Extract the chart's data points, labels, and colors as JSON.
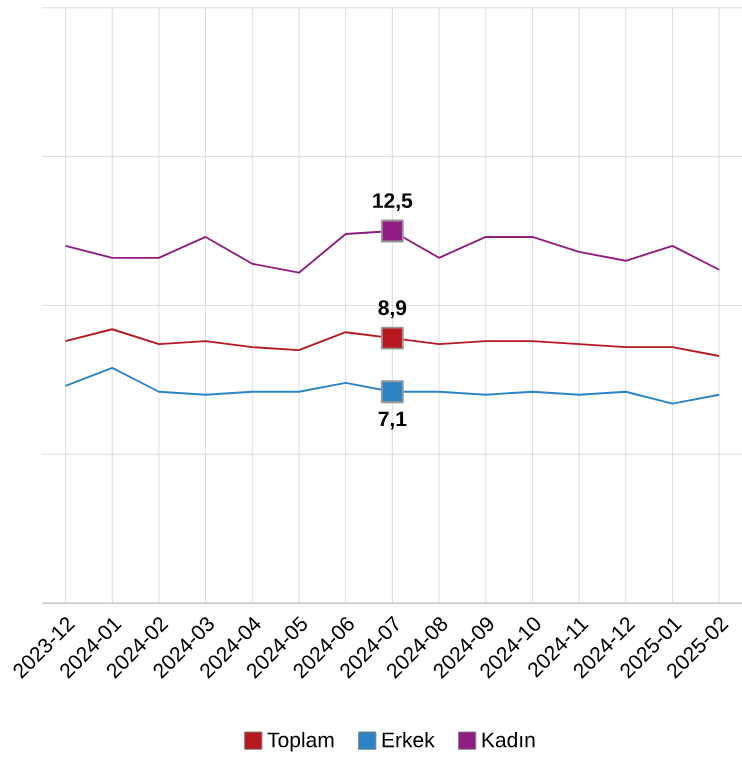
{
  "chart_data": {
    "type": "line",
    "categories": [
      "2023-12",
      "2024-01",
      "2024-02",
      "2024-03",
      "2024-04",
      "2024-05",
      "2024-06",
      "2024-07",
      "2024-08",
      "2024-09",
      "2024-10",
      "2024-11",
      "2024-12",
      "2025-01",
      "2025-02"
    ],
    "series": [
      {
        "name": "Toplam",
        "color": "#b5191f",
        "values": [
          8.8,
          9.2,
          8.7,
          8.8,
          8.6,
          8.5,
          9.1,
          8.9,
          8.7,
          8.8,
          8.8,
          8.7,
          8.6,
          8.6,
          8.3
        ],
        "value_labels": [
          null,
          null,
          null,
          null,
          null,
          null,
          null,
          "8,9",
          null,
          null,
          null,
          null,
          null,
          null,
          null
        ]
      },
      {
        "name": "Erkek",
        "color": "#2b84c6",
        "values": [
          7.3,
          7.9,
          7.1,
          7.0,
          7.1,
          7.1,
          7.4,
          7.1,
          7.1,
          7.0,
          7.1,
          7.0,
          7.1,
          6.7,
          7.0
        ],
        "value_labels": [
          null,
          null,
          null,
          null,
          null,
          null,
          null,
          "7,1",
          null,
          null,
          null,
          null,
          null,
          null,
          null
        ]
      },
      {
        "name": "Kadın",
        "color": "#8f1d82",
        "values": [
          12.0,
          11.6,
          11.6,
          12.3,
          11.4,
          11.1,
          12.4,
          12.5,
          11.6,
          12.3,
          12.3,
          11.8,
          11.5,
          12.0,
          11.2
        ],
        "value_labels": [
          null,
          null,
          null,
          null,
          null,
          null,
          null,
          "12,5",
          null,
          null,
          null,
          null,
          null,
          null,
          null
        ]
      }
    ],
    "ylim": [
      0,
      20
    ],
    "yticks": [
      {
        "value": 0,
        "label": null
      },
      {
        "value": 5,
        "label": null
      },
      {
        "value": 10,
        "label": null
      },
      {
        "value": 15,
        "label": null
      },
      {
        "value": 20,
        "label": null
      }
    ],
    "tick_labels": "x",
    "grid": true,
    "legend": "bottom",
    "line_style": "solid"
  }
}
